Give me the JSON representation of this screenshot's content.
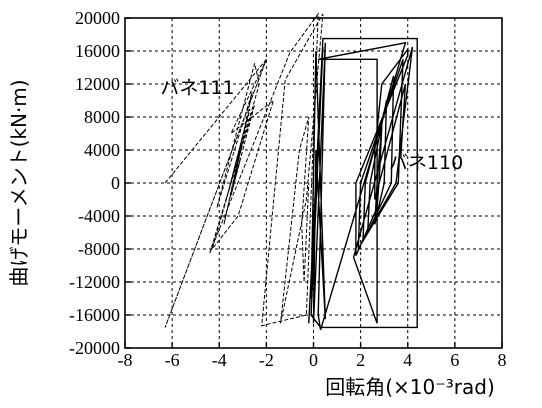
{
  "chart_data": {
    "type": "line",
    "xlabel": "回転角(×10⁻³rad)",
    "ylabel": "曲げモーメント(kN·m)",
    "xlim": [
      -8,
      8
    ],
    "ylim": [
      -20000,
      20000
    ],
    "xticks": [
      "-8",
      "-6",
      "-4",
      "-2",
      "0",
      "2",
      "4",
      "6",
      "8"
    ],
    "yticks": [
      "20000",
      "16000",
      "12000",
      "8000",
      "4000",
      "0",
      "-4000",
      "-8000",
      "-12000",
      "-16000",
      "-20000"
    ],
    "grid": true,
    "annotations": [
      {
        "text": "バネ111",
        "x": -6.5,
        "y": 10800
      },
      {
        "text": "バネ110",
        "x": 3.2,
        "y": 1700
      }
    ],
    "series": [
      {
        "style": "dashed",
        "x": [
          -6.3,
          -2.0,
          -2.0,
          -6.3,
          -6.3,
          -2.0,
          -3.5,
          -1.7,
          -3.2,
          -4.3,
          -2.3,
          -2.5,
          -4.1,
          -2.6,
          -3.8,
          -2.7,
          -3.7,
          -2.8,
          -3.6,
          -3.0,
          -3.4,
          -3.1,
          -3.5,
          -2.5,
          -4.4,
          -1.0,
          0.2,
          -0.3,
          -2.2,
          -1.2,
          0.4,
          -0.3,
          -1.4,
          -0.6,
          -0.2,
          -0.5,
          -0.4,
          -0.2
        ],
        "y": [
          0,
          15000,
          15000,
          -17500,
          -17500,
          15000,
          6000,
          10000,
          -4000,
          -8000,
          12000,
          14500,
          -3000,
          11000,
          -5000,
          9000,
          -2000,
          8000,
          -1000,
          5000,
          0,
          3000,
          -1500,
          9500,
          -8500,
          15800,
          20500,
          -16000,
          -17300,
          12500,
          20500,
          -2000,
          -17000,
          4000,
          8000,
          -5000,
          -12000,
          0
        ]
      },
      {
        "style": "solid",
        "x": [
          -0.2,
          0.4,
          0.8,
          4.4,
          4.4,
          0.3,
          -0.1,
          0.4,
          -0.1,
          0.1,
          0.5,
          0.1,
          0.0,
          0.5,
          0.2,
          0.3,
          3.9,
          0.2,
          2.7,
          2.7,
          1.7,
          4.2,
          3.5,
          1.9,
          2.0,
          3.8,
          3.6,
          2.1,
          2.2,
          3.4,
          3.3,
          2.3,
          2.4,
          3.1,
          3.0,
          2.6,
          2.7,
          2.9,
          2.8,
          2.7,
          1.8,
          1.8,
          4.0,
          4.0,
          2.9,
          2.6,
          2.6,
          3.9,
          3.7
        ],
        "y": [
          -17000,
          17500,
          17500,
          17500,
          -17500,
          -17500,
          -16000,
          16500,
          -14000,
          16000,
          -16500,
          4000,
          -17000,
          17000,
          -16000,
          -17800,
          17000,
          15000,
          15000,
          -17000,
          -9000,
          16500,
          0,
          -8000,
          0,
          15000,
          0,
          -7000,
          0,
          13000,
          0,
          -6000,
          0,
          10000,
          0,
          -5000,
          0,
          7000,
          1000,
          -3000,
          -8800,
          0,
          15500,
          16200,
          12000,
          4000,
          -2000,
          12000,
          3000
        ]
      }
    ]
  }
}
